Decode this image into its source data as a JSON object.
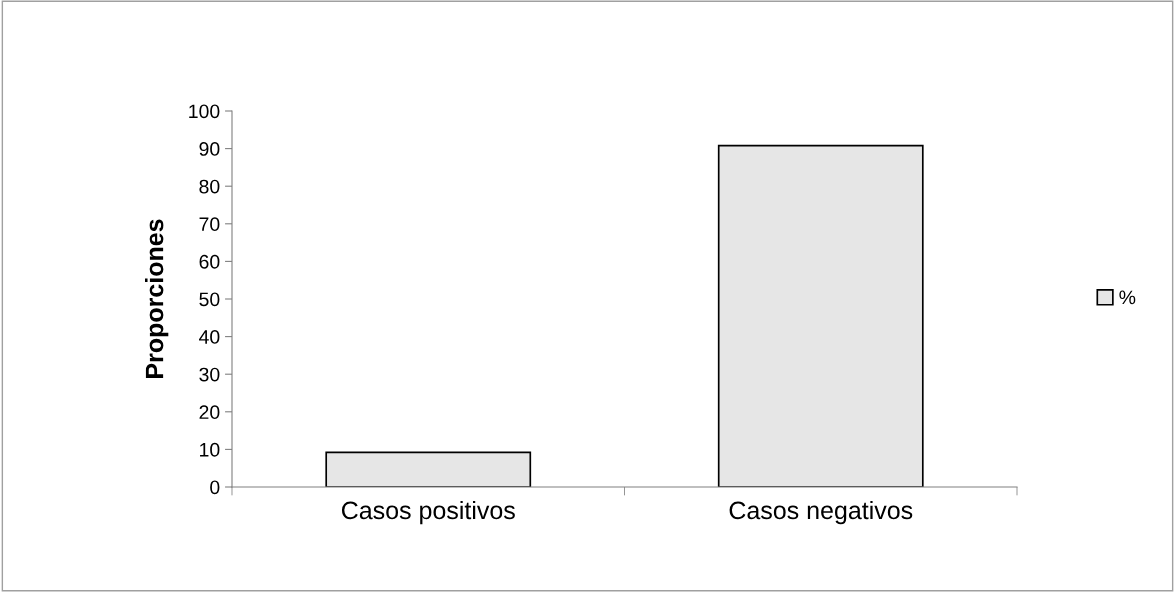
{
  "chart_data": {
    "type": "bar",
    "ylabel": "Proporciones",
    "categories": [
      "Casos positivos",
      "Casos negativos"
    ],
    "series": [
      {
        "name": "%",
        "color": "#e6e6e6",
        "values": [
          9.2,
          90.8
        ]
      }
    ],
    "ylim": [
      0,
      100
    ],
    "yticks": [
      0,
      10,
      20,
      30,
      40,
      50,
      60,
      70,
      80,
      90,
      100
    ],
    "grid": false,
    "legend": "right"
  }
}
